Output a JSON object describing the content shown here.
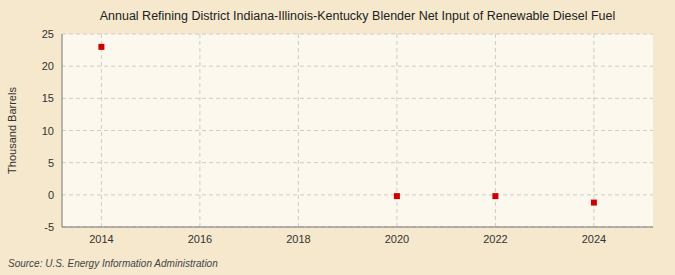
{
  "chart_data": {
    "type": "scatter",
    "title": "Annual Refining District Indiana-Illinois-Kentucky Blender Net Input of Renewable Diesel Fuel",
    "y_label": "Thousand Barrels",
    "annotations": [
      "Source: U.S. Energy Information Administration"
    ],
    "x": [
      2014,
      2020,
      2022,
      2024
    ],
    "values": [
      23,
      -0.2,
      -0.2,
      -1.2
    ],
    "color": "#cc0000",
    "marker": "square",
    "xlim": [
      2013.2,
      2025.2
    ],
    "ylim": [
      -5,
      25
    ],
    "xticks": [
      2014,
      2016,
      2018,
      2020,
      2022,
      2024
    ],
    "yticks": [
      -5,
      0,
      5,
      10,
      15,
      20,
      25
    ],
    "grid": true
  }
}
